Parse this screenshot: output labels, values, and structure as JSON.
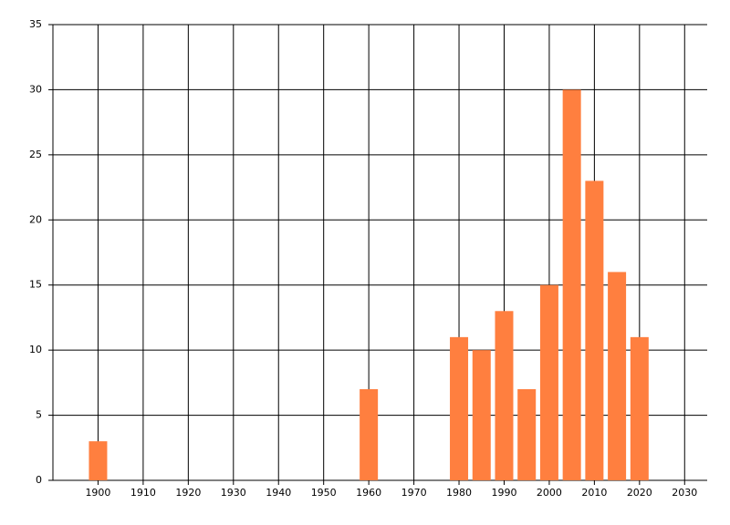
{
  "chart_data": {
    "type": "bar",
    "x": [
      1900,
      1960,
      1980,
      1985,
      1990,
      1995,
      2000,
      2005,
      2010,
      2015,
      2020
    ],
    "values": [
      3,
      7,
      11,
      10,
      13,
      7,
      15,
      30,
      23,
      16,
      11
    ],
    "color": "#ff7f3f",
    "xlim": [
      1890,
      2035
    ],
    "xticks": [
      1900,
      1910,
      1920,
      1930,
      1940,
      1950,
      1960,
      1970,
      1980,
      1990,
      2000,
      2010,
      2020,
      2030
    ],
    "ylim": [
      0,
      35
    ],
    "yticks": [
      0,
      5,
      10,
      15,
      20,
      25,
      30,
      35
    ],
    "grid": true
  }
}
